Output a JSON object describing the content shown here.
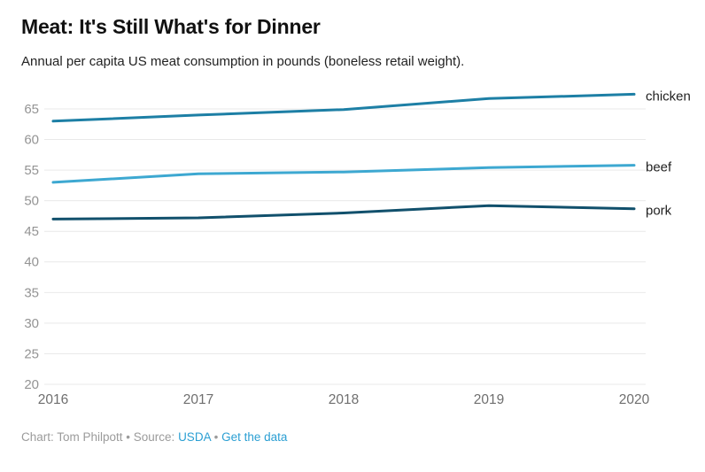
{
  "header": {
    "title": "Meat: It's Still What's for Dinner",
    "subtitle": "Annual per capita US meat consumption in pounds (boneless retail weight)."
  },
  "chart_data": {
    "type": "line",
    "title": "Meat: It's Still What's for Dinner",
    "subtitle": "Annual per capita US meat consumption in pounds (boneless retail weight).",
    "x": [
      "2016",
      "2017",
      "2018",
      "2019",
      "2020"
    ],
    "series": [
      {
        "name": "chicken",
        "color": "#1d7fa5",
        "values": [
          63.0,
          64.0,
          64.9,
          66.7,
          67.4
        ]
      },
      {
        "name": "beef",
        "color": "#3da8d1",
        "values": [
          53.0,
          54.4,
          54.7,
          55.4,
          55.8
        ]
      },
      {
        "name": "pork",
        "color": "#11506c",
        "values": [
          47.0,
          47.2,
          48.0,
          49.2,
          48.7
        ]
      }
    ],
    "ylim": [
      20,
      68
    ],
    "yticks": [
      20,
      25,
      30,
      35,
      40,
      45,
      50,
      55,
      60,
      65
    ],
    "grid": true,
    "legend_position": "right-of-line-end",
    "colors": {
      "grid": "#e9e9e9",
      "ytick_label": "#949494",
      "xtick_label": "#6f6f6f",
      "series_label": "#1f1f1f"
    }
  },
  "footer": {
    "prefix": "Chart: Tom Philpott • Source: ",
    "source_link": "USDA",
    "separator": " • ",
    "data_link": "Get the data",
    "link_color": "#2b9fd3",
    "text_color": "#9b9b9b"
  }
}
